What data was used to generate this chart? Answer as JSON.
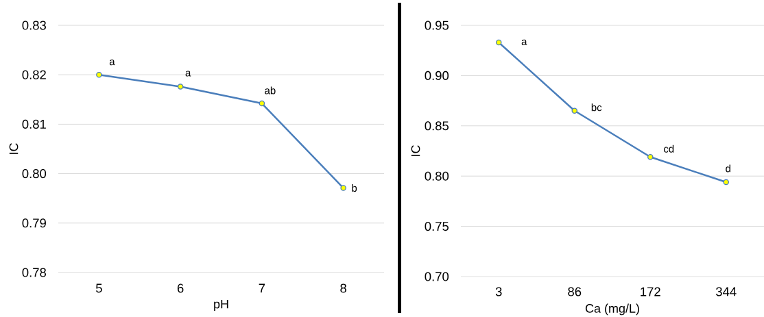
{
  "chart_data": [
    {
      "type": "line",
      "xlabel": "pH",
      "ylabel": "IC",
      "categories": [
        "5",
        "6",
        "7",
        "8"
      ],
      "values": [
        0.82,
        0.8176,
        0.8142,
        0.7971
      ],
      "color": "#4a7ebb",
      "marker": "circle",
      "grid": "y",
      "ylim": [
        0.78,
        0.83
      ],
      "yticks": [
        0.78,
        0.79,
        {
          "value": 0.8,
          "label": "0.80"
        },
        0.81,
        0.82,
        0.83
      ],
      "annotations": [
        {
          "text": "a",
          "x": "5",
          "y": 0.82
        },
        {
          "text": "a",
          "x": "6",
          "y": 0.8176
        },
        {
          "text": "ab",
          "x": "7",
          "y": 0.8142
        },
        {
          "text": "b",
          "x": "8",
          "y": 0.7971
        }
      ]
    },
    {
      "type": "line",
      "xlabel": "Ca (mg/L)",
      "ylabel": "IC",
      "categories": [
        "3",
        "86",
        "172",
        "344"
      ],
      "values": [
        0.933,
        0.865,
        0.819,
        0.794
      ],
      "color": "#4a7ebb",
      "marker": "circle",
      "grid": "y",
      "ylim": [
        0.7,
        0.95
      ],
      "yticks": [
        {
          "value": 0.7,
          "label": "0.70"
        },
        0.75,
        {
          "value": 0.8,
          "label": "0.80"
        },
        0.85,
        {
          "value": 0.9,
          "label": "0.90"
        },
        0.95
      ],
      "annotations": [
        {
          "text": "a",
          "x": "3",
          "y": 0.933
        },
        {
          "text": "bc",
          "x": "86",
          "y": 0.865
        },
        {
          "text": "cd",
          "x": "172",
          "y": 0.819
        },
        {
          "text": "d",
          "x": "344",
          "y": 0.794
        }
      ]
    }
  ]
}
